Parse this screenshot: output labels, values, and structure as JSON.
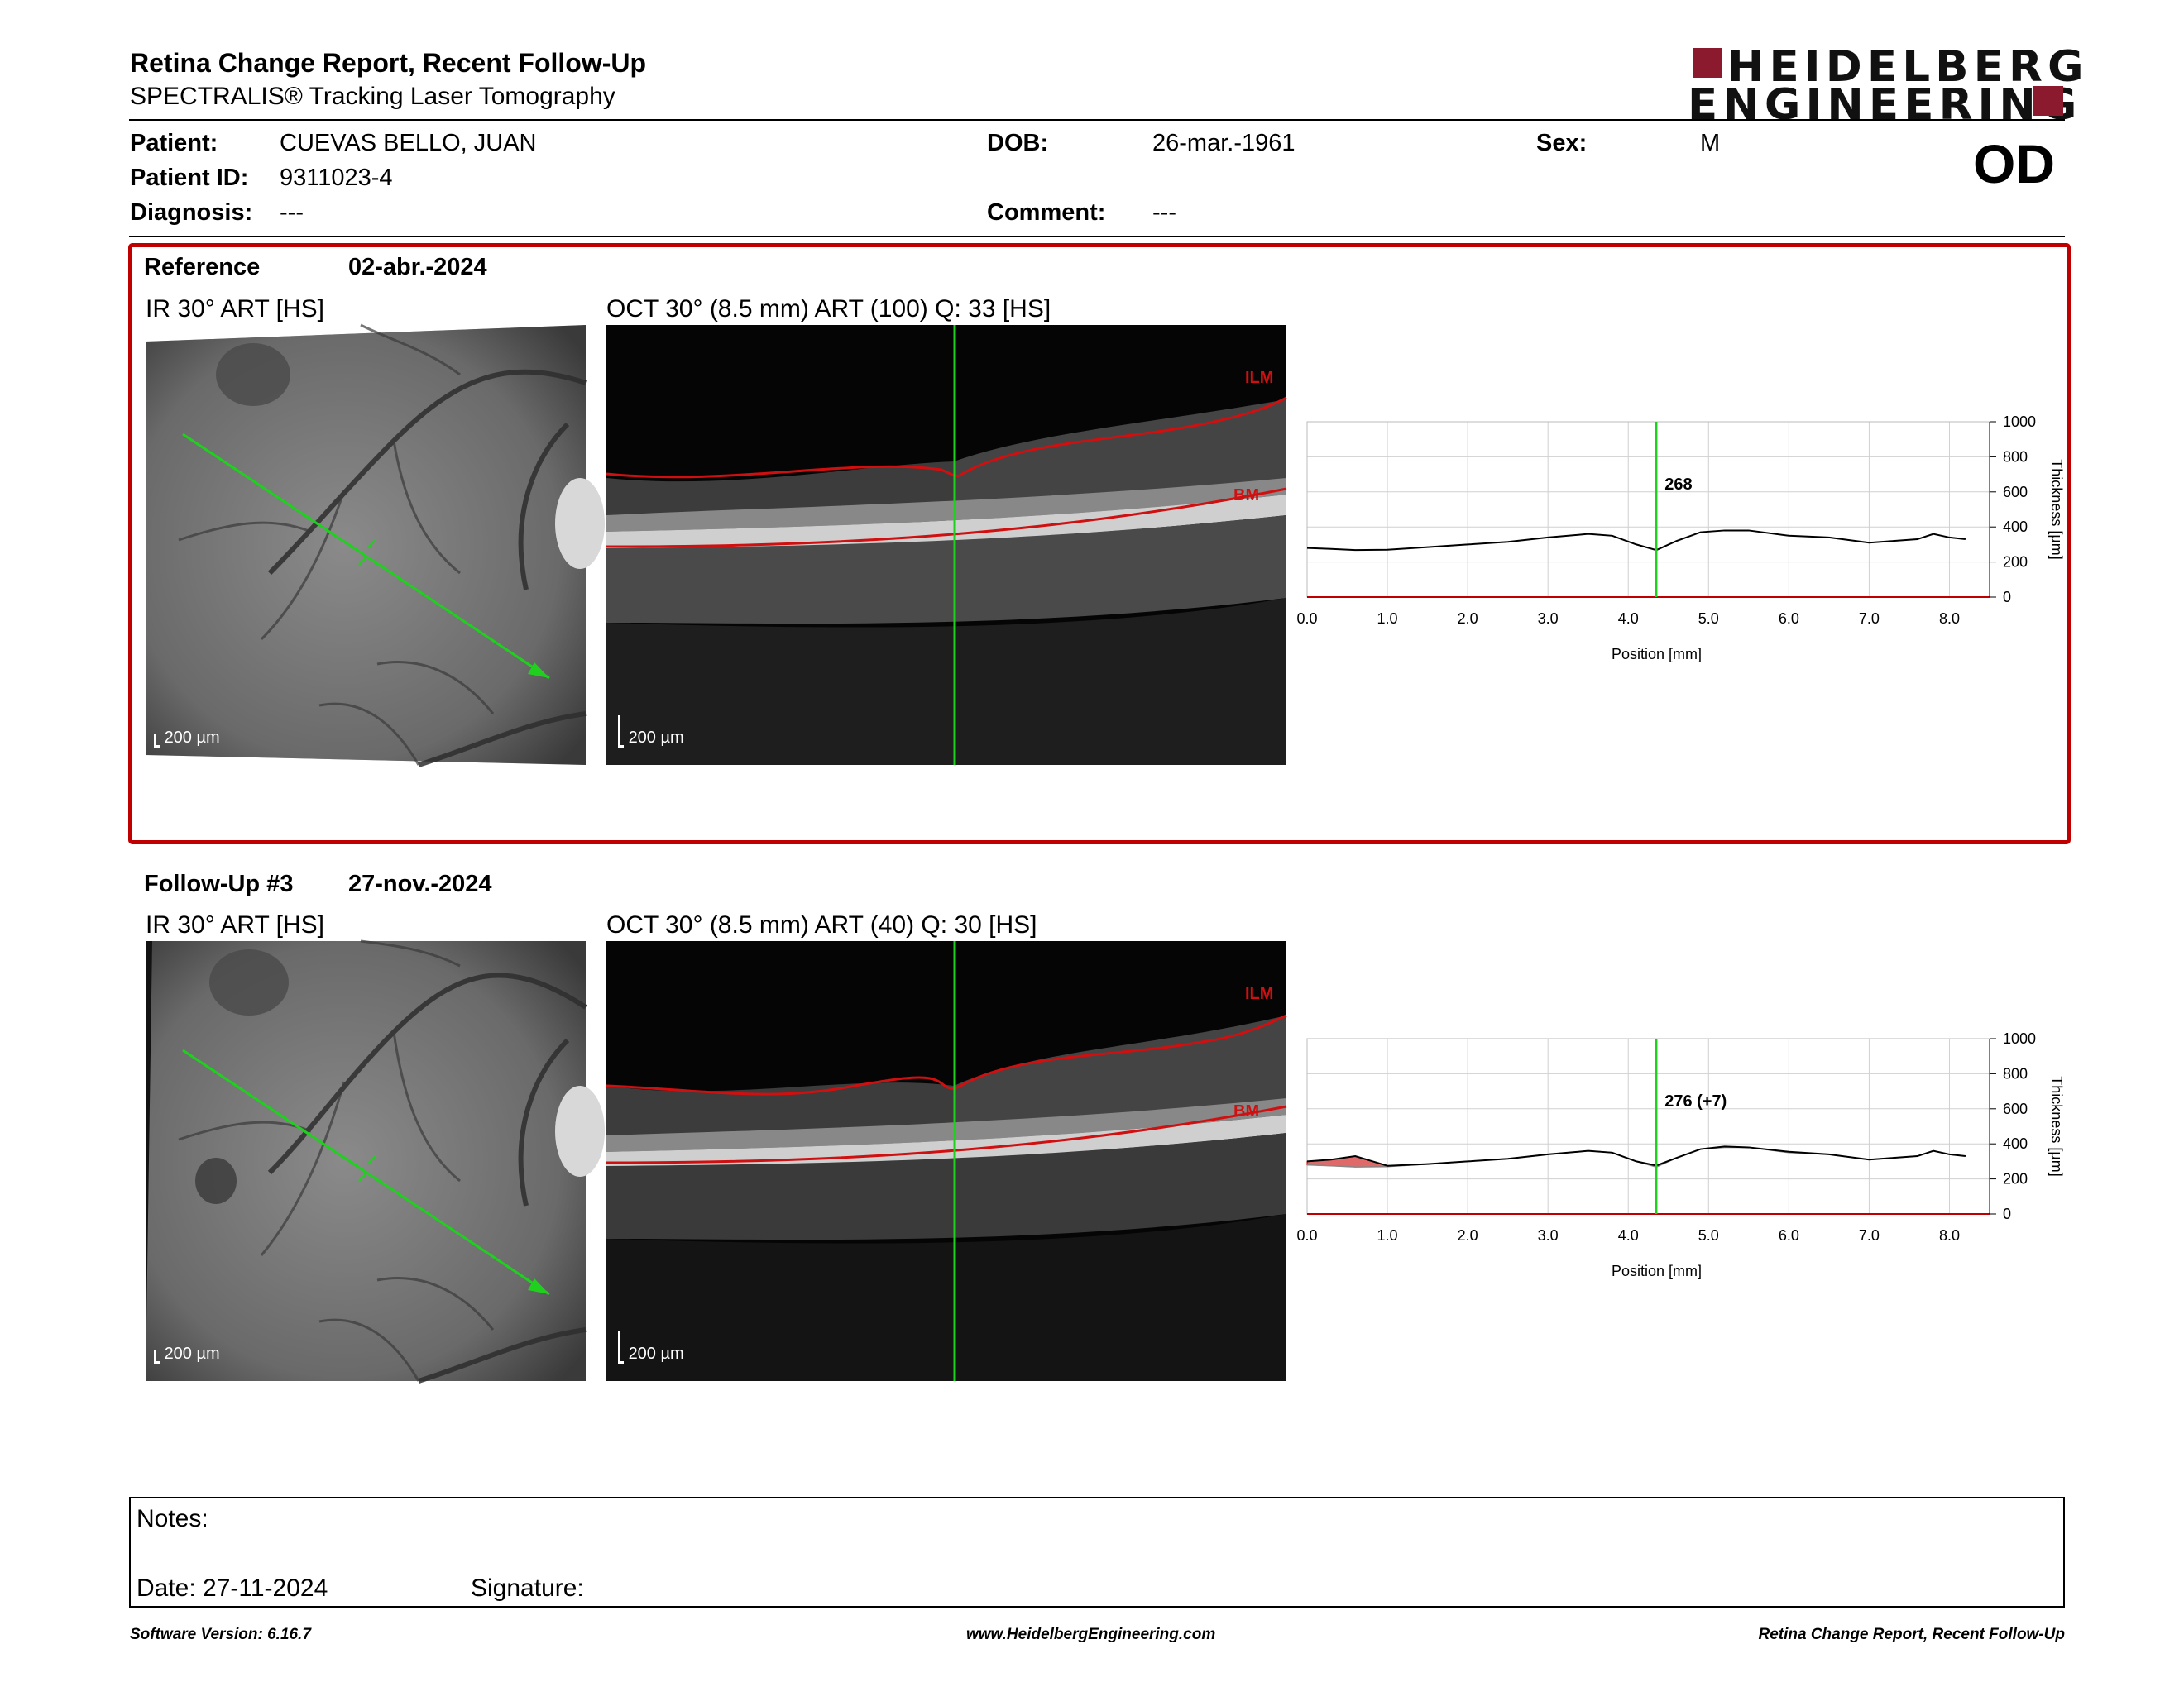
{
  "header": {
    "title": "Retina Change Report, Recent Follow-Up",
    "subtitle": "SPECTRALIS® Tracking Laser Tomography",
    "logo_line1": "HEIDELBERG",
    "logo_line2": "ENGINEERING"
  },
  "patient": {
    "patient_label": "Patient:",
    "patient_value": "CUEVAS BELLO, JUAN",
    "id_label": "Patient ID:",
    "id_value": "9311023-4",
    "diagnosis_label": "Diagnosis:",
    "diagnosis_value": "---",
    "dob_label": "DOB:",
    "dob_value": "26-mar.-1961",
    "comment_label": "Comment:",
    "comment_value": "---",
    "sex_label": "Sex:",
    "sex_value": "M",
    "eye": "OD"
  },
  "reference": {
    "label": "Reference",
    "date": "02-abr.-2024",
    "ir_title": "IR 30° ART [HS]",
    "oct_title": "OCT 30° (8.5 mm) ART (100) Q: 33 [HS]",
    "scale": "200 µm",
    "ilm": "ILM",
    "bm": "BM"
  },
  "followup": {
    "label": "Follow-Up #3",
    "date": "27-nov.-2024",
    "ir_title": "IR 30° ART [HS]",
    "oct_title": "OCT 30° (8.5 mm) ART (40) Q: 30 [HS]",
    "scale": "200 µm",
    "ilm": "ILM",
    "bm": "BM"
  },
  "chart_data": [
    {
      "type": "line",
      "title": "",
      "xlabel": "Position [mm]",
      "ylabel": "Thickness [µm]",
      "xlim": [
        0,
        8.5
      ],
      "ylim": [
        0,
        1000
      ],
      "xticks": [
        "0.0",
        "1.0",
        "2.0",
        "3.0",
        "4.0",
        "5.0",
        "6.0",
        "7.0",
        "8.0"
      ],
      "yticks": [
        "0",
        "200",
        "400",
        "600",
        "800",
        "1000"
      ],
      "grid": true,
      "marker_x": 4.35,
      "marker_label": "268",
      "series": [
        {
          "values_x": [
            0,
            0.3,
            0.6,
            1.0,
            1.5,
            2.0,
            2.5,
            3.0,
            3.5,
            3.8,
            4.1,
            4.35,
            4.6,
            4.9,
            5.2,
            5.5,
            6.0,
            6.5,
            7.0,
            7.3,
            7.6,
            7.8,
            8.0,
            8.2
          ],
          "values_y": [
            280,
            275,
            268,
            270,
            285,
            300,
            315,
            340,
            360,
            350,
            300,
            268,
            320,
            370,
            380,
            380,
            350,
            340,
            310,
            320,
            330,
            360,
            340,
            330
          ]
        }
      ]
    },
    {
      "type": "line",
      "title": "",
      "xlabel": "Position [mm]",
      "ylabel": "Thickness [µm]",
      "xlim": [
        0,
        8.5
      ],
      "ylim": [
        0,
        1000
      ],
      "xticks": [
        "0.0",
        "1.0",
        "2.0",
        "3.0",
        "4.0",
        "5.0",
        "6.0",
        "7.0",
        "8.0"
      ],
      "yticks": [
        "0",
        "200",
        "400",
        "600",
        "800",
        "1000"
      ],
      "grid": true,
      "marker_x": 4.35,
      "marker_label": "276 (+7)",
      "series": [
        {
          "values_x": [
            0,
            0.3,
            0.6,
            1.0,
            1.5,
            2.0,
            2.5,
            3.0,
            3.5,
            3.8,
            4.1,
            4.35,
            4.6,
            4.9,
            5.2,
            5.5,
            6.0,
            6.5,
            7.0,
            7.3,
            7.6,
            7.8,
            8.0,
            8.2
          ],
          "values_y": [
            300,
            310,
            330,
            275,
            285,
            300,
            315,
            340,
            360,
            350,
            300,
            276,
            320,
            370,
            385,
            380,
            355,
            340,
            310,
            320,
            330,
            360,
            340,
            330
          ]
        }
      ]
    }
  ],
  "notes": {
    "notes_label": "Notes:",
    "date_label": "Date: 27-11-2024",
    "signature_label": "Signature:"
  },
  "footer": {
    "left": "Software Version: 6.16.7",
    "center": "www.HeidelbergEngineering.com",
    "right": "Retina Change Report, Recent Follow-Up"
  },
  "colors": {
    "accent_red": "#c00000",
    "logo_red": "#8b1a2e",
    "scan_green": "#1fd01f"
  }
}
